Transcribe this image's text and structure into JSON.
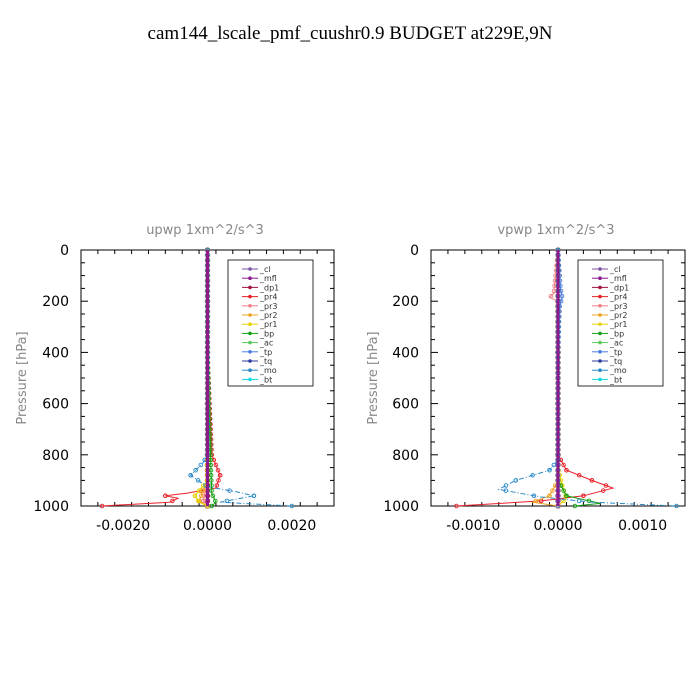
{
  "page_title": "cam144_lscale_pmf_cuushr0.9  BUDGET at229E,9N",
  "chart_data": [
    {
      "type": "line",
      "title": "upwp   1xm^2/s^3",
      "ylabel": "Pressure [hPa]",
      "xlim": [
        -0.003,
        0.003
      ],
      "ylim": [
        1000,
        0
      ],
      "yticks": [
        0,
        200,
        400,
        600,
        800,
        1000
      ],
      "ytick_labels": [
        "0",
        "200",
        "400",
        "600",
        "800",
        "1000"
      ],
      "xticks": [
        -0.002,
        0.0,
        0.002
      ],
      "xtick_labels": [
        "-0.0020",
        "0.0000",
        "0.0020"
      ],
      "legend": [
        "_cl",
        "_mfl",
        "_dp1",
        "_pr4",
        "_pr3",
        "_pr2",
        "_pr1",
        "_bp",
        "_ac",
        "_tp",
        "_tq",
        "_mo",
        "_bt"
      ],
      "legend_placement": "top-right",
      "series": [
        {
          "name": "_cl",
          "color": "#7a55a5",
          "x": [
            0,
            0,
            0,
            0,
            0,
            0
          ],
          "y": [
            0,
            200,
            400,
            600,
            800,
            1000
          ]
        },
        {
          "name": "_mfl",
          "color": "#8b1a8b",
          "x": [
            0,
            0,
            0,
            0,
            0,
            0
          ],
          "y": [
            0,
            200,
            400,
            600,
            800,
            1000
          ]
        },
        {
          "name": "_dp1",
          "color": "#a0153e",
          "x": [
            0,
            0,
            0,
            0,
            0,
            0
          ],
          "y": [
            0,
            200,
            400,
            600,
            800,
            1000
          ]
        },
        {
          "name": "_pr4",
          "color": "#e8202a",
          "x": [
            0,
            0,
            0,
            0.0001,
            0.0003,
            0.0002,
            -0.0005,
            -0.001,
            -0.0007,
            -0.0009,
            -0.0025
          ],
          "y": [
            0,
            200,
            400,
            800,
            880,
            930,
            950,
            960,
            970,
            985,
            1000
          ]
        },
        {
          "name": "_pr3",
          "color": "#f07f86",
          "x": [
            0,
            0,
            0,
            -0.0001,
            0
          ],
          "y": [
            0,
            400,
            900,
            980,
            1000
          ]
        },
        {
          "name": "_pr2",
          "color": "#f0a020",
          "x": [
            0,
            0,
            0,
            -0.0002,
            0
          ],
          "y": [
            0,
            400,
            900,
            980,
            1000
          ]
        },
        {
          "name": "_pr1",
          "color": "#e6d200",
          "x": [
            0,
            0,
            0,
            -0.0003,
            -0.0002,
            0
          ],
          "y": [
            0,
            400,
            900,
            960,
            985,
            1000
          ]
        },
        {
          "name": "_bp",
          "color": "#12a012",
          "x": [
            0,
            0,
            0.0001,
            0.0002,
            0.0001
          ],
          "y": [
            0,
            400,
            950,
            985,
            1000
          ]
        },
        {
          "name": "_ac",
          "color": "#5ac85a",
          "x": [
            0,
            0,
            0,
            0
          ],
          "y": [
            0,
            400,
            950,
            1000
          ]
        },
        {
          "name": "_tp",
          "color": "#4a7ae0",
          "x": [
            0,
            0,
            0,
            0
          ],
          "y": [
            0,
            400,
            950,
            1000
          ]
        },
        {
          "name": "_tq",
          "color": "#2a3aa0",
          "x": [
            0,
            0,
            0,
            0
          ],
          "y": [
            0,
            400,
            950,
            1000
          ]
        },
        {
          "name": "_mo",
          "color": "#2a8ac8",
          "x": [
            0,
            0,
            -0.0001,
            -0.0004,
            0,
            0.0007,
            0.0011,
            0.0003,
            0.002
          ],
          "y": [
            0,
            800,
            830,
            880,
            925,
            945,
            960,
            985,
            1000
          ]
        },
        {
          "name": "_bt",
          "color": "#10d8e6",
          "x": [
            0,
            0,
            0,
            0
          ],
          "y": [
            0,
            400,
            950,
            1000
          ]
        }
      ]
    },
    {
      "type": "line",
      "title": "vpwp   1xm^2/s^3",
      "ylabel": "Pressure [hPa]",
      "xlim": [
        -0.0015,
        0.0015
      ],
      "ylim": [
        1000,
        0
      ],
      "yticks": [
        0,
        200,
        400,
        600,
        800,
        1000
      ],
      "ytick_labels": [
        "0",
        "200",
        "400",
        "600",
        "800",
        "1000"
      ],
      "xticks": [
        -0.001,
        0.0,
        0.001
      ],
      "xtick_labels": [
        "-0.0010",
        "0.0000",
        "0.0010"
      ],
      "legend": [
        "_cl",
        "_mfl",
        "_dp1",
        "_pr4",
        "_pr3",
        "_pr2",
        "_pr1",
        "_bp",
        "_ac",
        "_tp",
        "_tq",
        "_mo",
        "_bt"
      ],
      "legend_placement": "top-right",
      "series": [
        {
          "name": "_cl",
          "color": "#7a55a5",
          "x": [
            0,
            0,
            0,
            0,
            0,
            0
          ],
          "y": [
            0,
            200,
            400,
            600,
            800,
            1000
          ]
        },
        {
          "name": "_mfl",
          "color": "#8b1a8b",
          "x": [
            0,
            0,
            0,
            0,
            0,
            0
          ],
          "y": [
            0,
            200,
            400,
            600,
            800,
            1000
          ]
        },
        {
          "name": "_dp1",
          "color": "#a0153e",
          "x": [
            0,
            0,
            0,
            0,
            0,
            0
          ],
          "y": [
            0,
            200,
            400,
            600,
            800,
            1000
          ]
        },
        {
          "name": "_pr4",
          "color": "#e8202a",
          "x": [
            0,
            0,
            0.0001,
            0.0004,
            0.00065,
            0.0003,
            -0.0002,
            -0.0012
          ],
          "y": [
            0,
            800,
            860,
            900,
            930,
            960,
            980,
            1000
          ]
        },
        {
          "name": "_pr3",
          "color": "#f07f86",
          "x": [
            0,
            -5e-05,
            -0.0001,
            0,
            0,
            0
          ],
          "y": [
            0,
            170,
            185,
            200,
            600,
            1000
          ]
        },
        {
          "name": "_pr2",
          "color": "#f0a020",
          "x": [
            0,
            0,
            -0.0001,
            -0.0003,
            0
          ],
          "y": [
            0,
            900,
            960,
            985,
            1000
          ]
        },
        {
          "name": "_pr1",
          "color": "#e6d200",
          "x": [
            0,
            0,
            5e-05,
            0.0001,
            0
          ],
          "y": [
            0,
            850,
            920,
            970,
            1000
          ]
        },
        {
          "name": "_bp",
          "color": "#12a012",
          "x": [
            0,
            0,
            0.0001,
            0.0005,
            0.0002
          ],
          "y": [
            0,
            900,
            960,
            990,
            1000
          ]
        },
        {
          "name": "_ac",
          "color": "#5ac85a",
          "x": [
            0,
            0,
            0,
            0
          ],
          "y": [
            0,
            400,
            950,
            1000
          ]
        },
        {
          "name": "_tp",
          "color": "#4a7ae0",
          "x": [
            0,
            3e-05,
            5e-05,
            2e-05,
            0,
            0,
            0
          ],
          "y": [
            0,
            150,
            185,
            220,
            400,
            800,
            1000
          ]
        },
        {
          "name": "_tq",
          "color": "#2a3aa0",
          "x": [
            0,
            0,
            0,
            0
          ],
          "y": [
            0,
            400,
            950,
            1000
          ]
        },
        {
          "name": "_mo",
          "color": "#2a8ac8",
          "x": [
            0,
            0,
            -0.0001,
            -0.0005,
            -0.0007,
            -0.0002,
            0.0004,
            0.0014
          ],
          "y": [
            0,
            820,
            860,
            900,
            935,
            965,
            985,
            1000
          ]
        },
        {
          "name": "_bt",
          "color": "#10d8e6",
          "x": [
            0,
            0,
            0,
            0
          ],
          "y": [
            0,
            400,
            950,
            1000
          ]
        }
      ]
    }
  ]
}
